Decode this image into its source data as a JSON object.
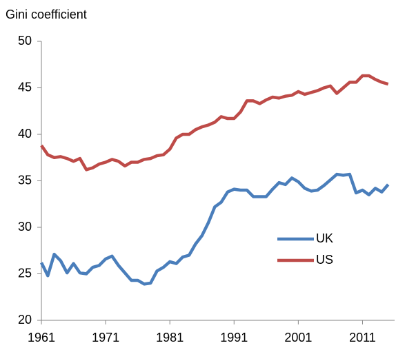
{
  "chart_data": {
    "type": "line",
    "y_axis_label": "Gini coefficient",
    "x": [
      1961,
      1962,
      1963,
      1964,
      1965,
      1966,
      1967,
      1968,
      1969,
      1970,
      1971,
      1972,
      1973,
      1974,
      1975,
      1976,
      1977,
      1978,
      1979,
      1980,
      1981,
      1982,
      1983,
      1984,
      1985,
      1986,
      1987,
      1988,
      1989,
      1990,
      1991,
      1992,
      1993,
      1994,
      1995,
      1996,
      1997,
      1998,
      1999,
      2000,
      2001,
      2002,
      2003,
      2004,
      2005,
      2006,
      2007,
      2008,
      2009,
      2010,
      2011,
      2012,
      2013,
      2014,
      2015
    ],
    "series": [
      {
        "name": "UK",
        "color": "#4a7ebb",
        "values": [
          26.2,
          24.8,
          27.1,
          26.4,
          25.1,
          26.1,
          25.1,
          25.0,
          25.7,
          25.9,
          26.6,
          26.9,
          25.9,
          25.1,
          24.3,
          24.3,
          23.9,
          24.0,
          25.3,
          25.7,
          26.3,
          26.1,
          26.8,
          27.0,
          28.2,
          29.1,
          30.5,
          32.2,
          32.7,
          33.8,
          34.1,
          34.0,
          34.0,
          33.3,
          33.3,
          33.3,
          34.1,
          34.8,
          34.6,
          35.3,
          34.9,
          34.2,
          33.9,
          34.0,
          34.5,
          35.1,
          35.7,
          35.6,
          35.7,
          33.7,
          34.0,
          33.5,
          34.2,
          33.8,
          34.6
        ]
      },
      {
        "name": "US",
        "color": "#be4b48",
        "values": [
          38.8,
          37.8,
          37.5,
          37.6,
          37.4,
          37.1,
          37.4,
          36.2,
          36.4,
          36.8,
          37.0,
          37.3,
          37.1,
          36.6,
          37.0,
          37.0,
          37.3,
          37.4,
          37.7,
          37.8,
          38.4,
          39.6,
          40.0,
          40.0,
          40.5,
          40.8,
          41.0,
          41.3,
          41.9,
          41.7,
          41.7,
          42.4,
          43.6,
          43.6,
          43.3,
          43.7,
          44.0,
          43.9,
          44.1,
          44.2,
          44.6,
          44.3,
          44.5,
          44.7,
          45.0,
          45.2,
          44.4,
          45.0,
          45.6,
          45.6,
          46.3,
          46.3,
          45.9,
          45.6,
          45.4
        ]
      }
    ],
    "xlim": [
      1961,
      2016
    ],
    "xticks": [
      1961,
      1971,
      1981,
      1991,
      2001,
      2011
    ],
    "ylim": [
      20,
      50
    ],
    "yticks": [
      20,
      25,
      30,
      35,
      40,
      45,
      50
    ],
    "grid": false,
    "legend": "right"
  }
}
